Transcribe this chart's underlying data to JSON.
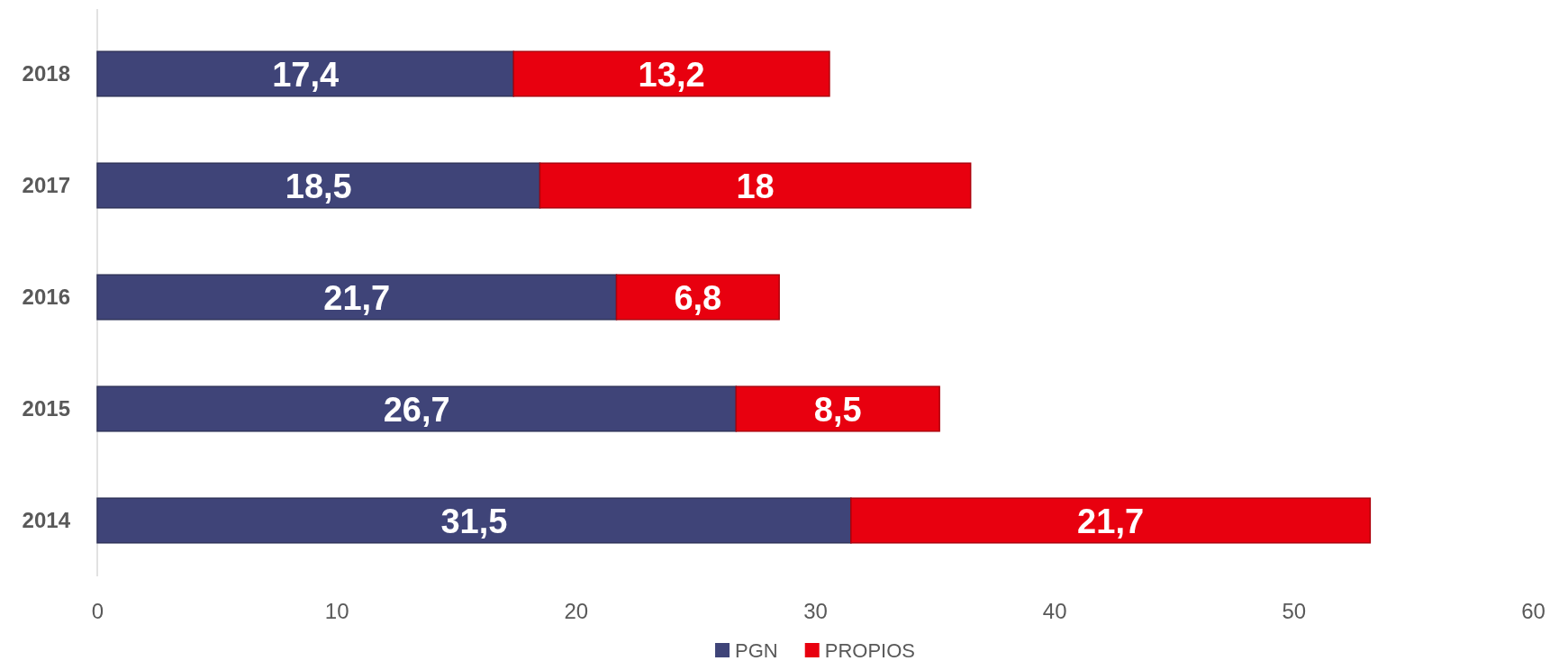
{
  "chart_data": {
    "type": "bar",
    "orientation": "horizontal",
    "stacked": true,
    "categories": [
      "2018",
      "2017",
      "2016",
      "2015",
      "2014"
    ],
    "series": [
      {
        "name": "PGN",
        "color": "#3f4478",
        "values": [
          17.4,
          18.5,
          21.7,
          26.7,
          31.5
        ],
        "value_labels": [
          "17,4",
          "18,5",
          "21,7",
          "26,7",
          "31,5"
        ]
      },
      {
        "name": "PROPIOS",
        "color": "#e8000f",
        "values": [
          13.2,
          18,
          6.8,
          8.5,
          21.7
        ],
        "value_labels": [
          "13,2",
          "18",
          "6,8",
          "8,5",
          "21,7"
        ]
      }
    ],
    "xlim": [
      0,
      60
    ],
    "xticks": [
      0,
      10,
      20,
      30,
      40,
      50,
      60
    ],
    "legend": "bottom",
    "grid": false
  }
}
